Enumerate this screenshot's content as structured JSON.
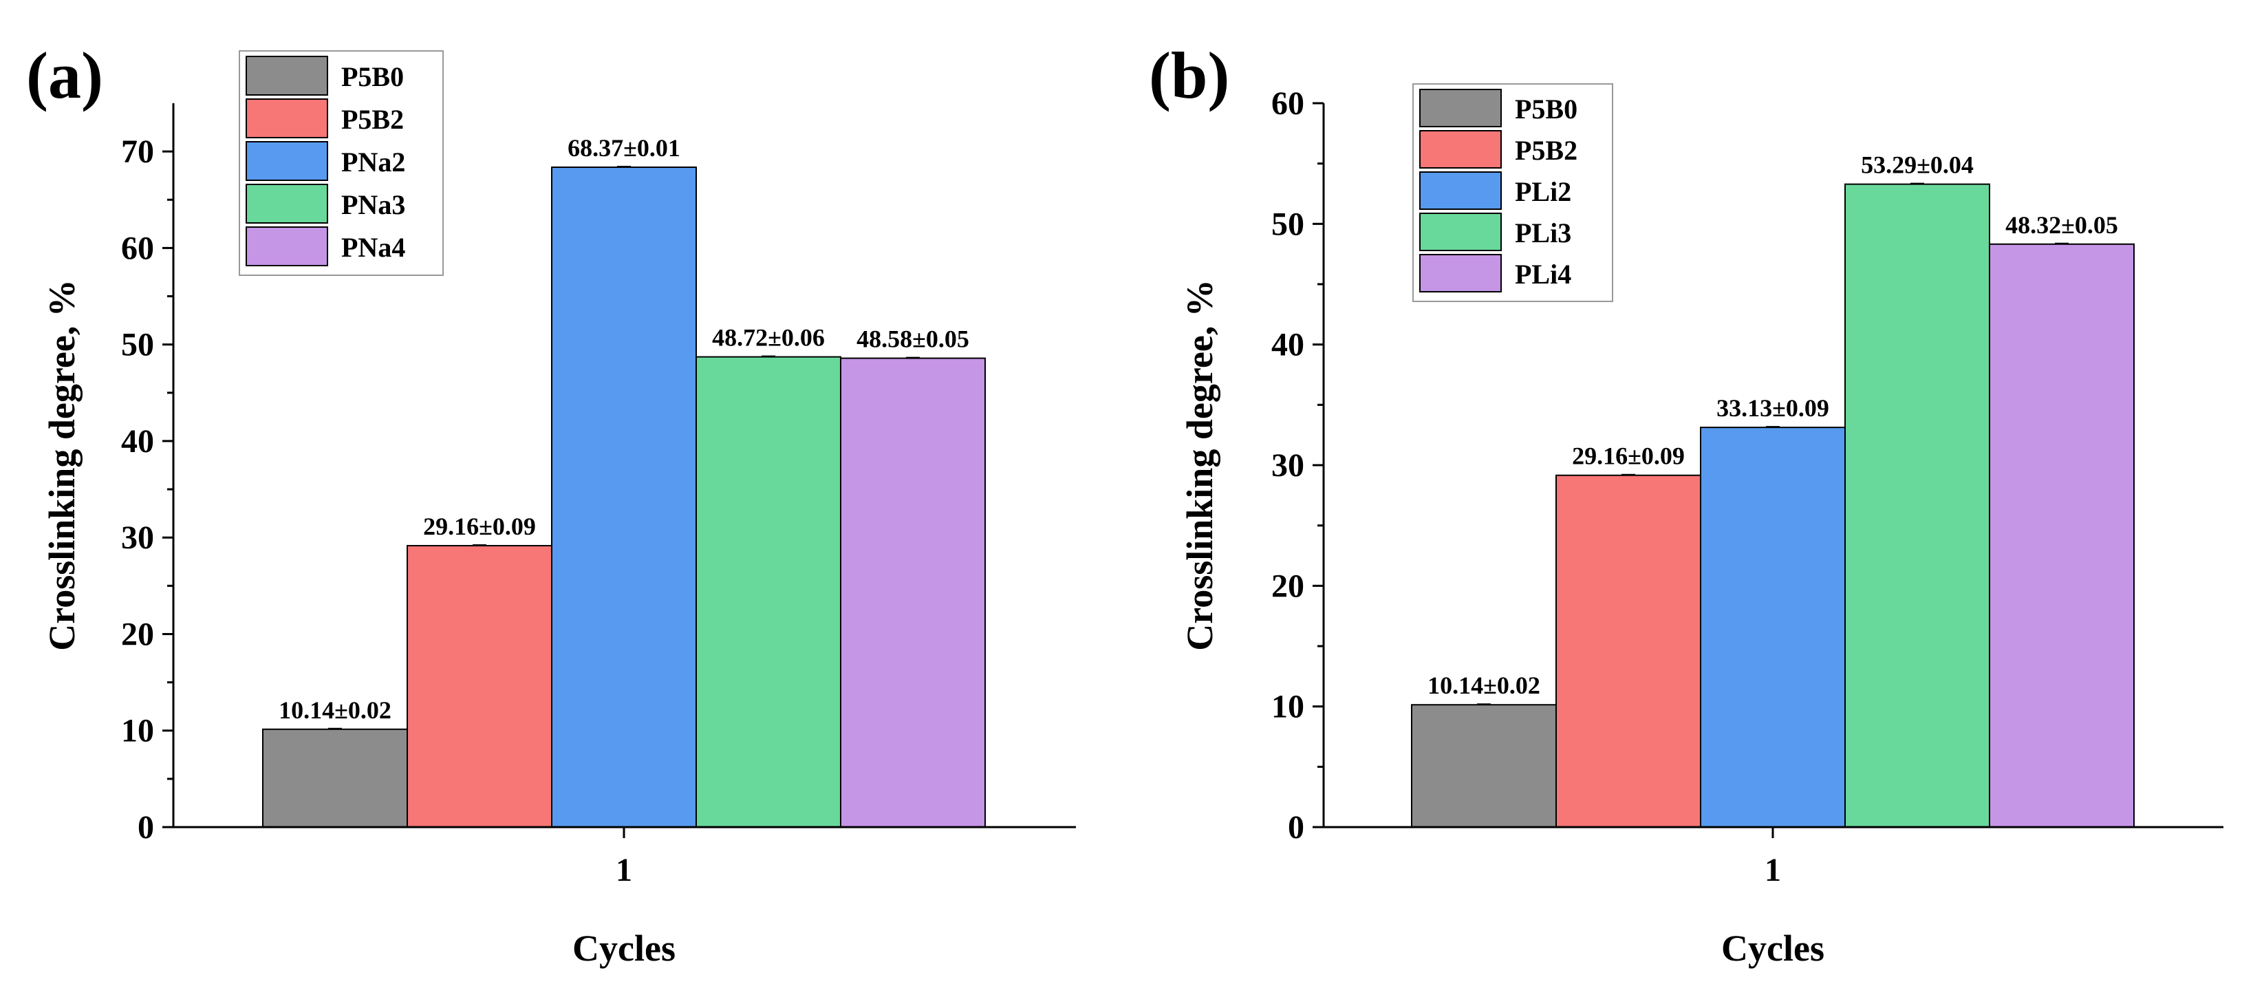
{
  "chart_data": [
    {
      "type": "bar",
      "panel_label": "(a)",
      "categories": [
        "1"
      ],
      "series": [
        {
          "name": "P5B0",
          "values": [
            10.14
          ],
          "label": "10.14±0.02",
          "color": "#8c8c8c"
        },
        {
          "name": "P5B2",
          "values": [
            29.16
          ],
          "label": "29.16±0.09",
          "color": "#f77676"
        },
        {
          "name": "PNa2",
          "values": [
            68.37
          ],
          "label": "68.37±0.01",
          "color": "#579aef"
        },
        {
          "name": "PNa3",
          "values": [
            48.72
          ],
          "label": "48.72±0.06",
          "color": "#69d89b"
        },
        {
          "name": "PNa4",
          "values": [
            48.58
          ],
          "label": "48.58±0.05",
          "color": "#c595e6"
        }
      ],
      "xlabel": "Cycles",
      "ylabel": "Crosslinking degree, %",
      "ylim": [
        0,
        75
      ],
      "yticks": [
        0,
        10,
        20,
        30,
        40,
        50,
        60,
        70
      ],
      "grid": false,
      "legend": "top-left"
    },
    {
      "type": "bar",
      "panel_label": "(b)",
      "categories": [
        "1"
      ],
      "series": [
        {
          "name": "P5B0",
          "values": [
            10.14
          ],
          "label": "10.14±0.02",
          "color": "#8c8c8c"
        },
        {
          "name": "P5B2",
          "values": [
            29.16
          ],
          "label": "29.16±0.09",
          "color": "#f77676"
        },
        {
          "name": "PLi2",
          "values": [
            33.13
          ],
          "label": "33.13±0.09",
          "color": "#579aef"
        },
        {
          "name": "PLi3",
          "values": [
            53.29
          ],
          "label": "53.29±0.04",
          "color": "#69d89b"
        },
        {
          "name": "PLi4",
          "values": [
            48.32
          ],
          "label": "48.32±0.05",
          "color": "#c595e6"
        }
      ],
      "xlabel": "Cycles",
      "ylabel": "Crosslinking degree, %",
      "ylim": [
        0,
        60
      ],
      "yticks": [
        0,
        10,
        20,
        30,
        40,
        50,
        60
      ],
      "grid": false,
      "legend": "top-left"
    }
  ]
}
